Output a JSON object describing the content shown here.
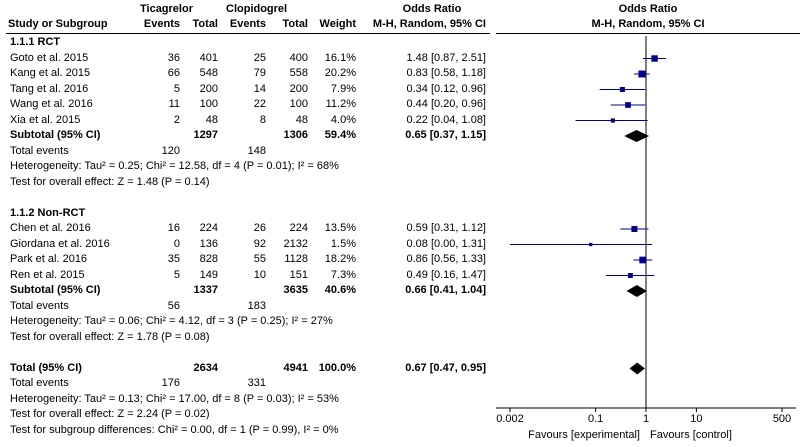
{
  "header": {
    "group1": "Ticagrelor",
    "group2": "Clopidogrel",
    "effect_title": "Odds Ratio",
    "plot_title": "Odds Ratio",
    "col_study": "Study or Subgroup",
    "col_events1": "Events",
    "col_total1": "Total",
    "col_events2": "Events",
    "col_total2": "Total",
    "col_weight": "Weight",
    "col_method": "M-H, Random, 95% CI",
    "plot_method": "M-H, Random, 95% CI"
  },
  "rows": [
    {
      "kind": "subgroup",
      "label": "1.1.1 RCT"
    },
    {
      "kind": "study",
      "label": "Goto et al. 2015",
      "e1": "36",
      "n1": "401",
      "e2": "25",
      "n2": "400",
      "weight": "16.1%",
      "ci": "1.48 [0.87, 2.51]"
    },
    {
      "kind": "study",
      "label": "Kang et al. 2015",
      "e1": "66",
      "n1": "548",
      "e2": "79",
      "n2": "558",
      "weight": "20.2%",
      "ci": "0.83 [0.58, 1.18]"
    },
    {
      "kind": "study",
      "label": "Tang et al. 2016",
      "e1": "5",
      "n1": "200",
      "e2": "14",
      "n2": "200",
      "weight": "7.9%",
      "ci": "0.34 [0.12, 0.96]"
    },
    {
      "kind": "study",
      "label": "Wang et al. 2016",
      "e1": "11",
      "n1": "100",
      "e2": "22",
      "n2": "100",
      "weight": "11.2%",
      "ci": "0.44 [0.20, 0.96]"
    },
    {
      "kind": "study",
      "label": "Xia et al. 2015",
      "e1": "2",
      "n1": "48",
      "e2": "8",
      "n2": "48",
      "weight": "4.0%",
      "ci": "0.22 [0.04, 1.08]"
    },
    {
      "kind": "subtotal",
      "label": "Subtotal (95% CI)",
      "n1": "1297",
      "n2": "1306",
      "weight": "59.4%",
      "ci": "0.65 [0.37, 1.15]"
    },
    {
      "kind": "events",
      "label": "Total events",
      "e1": "120",
      "e2": "148"
    },
    {
      "kind": "text",
      "label": "Heterogeneity: Tau² = 0.25; Chi² = 12.58, df = 4 (P = 0.01); I² = 68%"
    },
    {
      "kind": "text",
      "label": "Test for overall effect: Z = 1.48 (P = 0.14)"
    },
    {
      "kind": "blank"
    },
    {
      "kind": "subgroup",
      "label": "1.1.2 Non-RCT"
    },
    {
      "kind": "study",
      "label": "Chen et al. 2016",
      "e1": "16",
      "n1": "224",
      "e2": "26",
      "n2": "224",
      "weight": "13.5%",
      "ci": "0.59 [0.31, 1.12]"
    },
    {
      "kind": "study",
      "label": "Giordana et al. 2016",
      "e1": "0",
      "n1": "136",
      "e2": "92",
      "n2": "2132",
      "weight": "1.5%",
      "ci": "0.08 [0.00, 1.31]"
    },
    {
      "kind": "study",
      "label": "Park et al. 2016",
      "e1": "35",
      "n1": "828",
      "e2": "55",
      "n2": "1128",
      "weight": "18.2%",
      "ci": "0.86 [0.56, 1.33]"
    },
    {
      "kind": "study",
      "label": "Ren et al. 2015",
      "e1": "5",
      "n1": "149",
      "e2": "10",
      "n2": "151",
      "weight": "7.3%",
      "ci": "0.49 [0.16, 1.47]"
    },
    {
      "kind": "subtotal",
      "label": "Subtotal (95% CI)",
      "n1": "1337",
      "n2": "3635",
      "weight": "40.6%",
      "ci": "0.66 [0.41, 1.04]"
    },
    {
      "kind": "events",
      "label": "Total events",
      "e1": "56",
      "e2": "183"
    },
    {
      "kind": "text",
      "label": "Heterogeneity: Tau² = 0.06; Chi² = 4.12, df = 3 (P = 0.25); I² = 27%"
    },
    {
      "kind": "text",
      "label": "Test for overall effect: Z = 1.78 (P = 0.08)"
    },
    {
      "kind": "blank"
    },
    {
      "kind": "total",
      "label": "Total (95% CI)",
      "n1": "2634",
      "n2": "4941",
      "weight": "100.0%",
      "ci": "0.67 [0.47, 0.95]"
    },
    {
      "kind": "events",
      "label": "Total events",
      "e1": "176",
      "e2": "331"
    },
    {
      "kind": "text",
      "label": "Heterogeneity: Tau² = 0.13; Chi² = 17.00, df = 8 (P = 0.03); I² = 53%"
    },
    {
      "kind": "text",
      "label": "Test for overall effect: Z = 2.24 (P = 0.02)"
    },
    {
      "kind": "text",
      "label": "Test for subgroup differences: Chi² = 0.00, df = 1 (P = 0.99), I² = 0%"
    }
  ],
  "axis": {
    "ticks": [
      "0.002",
      "0.1",
      "1",
      "10",
      "500"
    ],
    "favours_left": "Favours [experimental]",
    "favours_right": "Favours [control]"
  },
  "chart_data": {
    "type": "forest",
    "x_scale": "log",
    "xlim": [
      0.002,
      500
    ],
    "xticks": [
      0.002,
      0.1,
      1,
      10,
      500
    ],
    "reference_line": 1,
    "marker_color": "#00008b",
    "studies": [
      {
        "name": "Goto et al. 2015",
        "or": 1.48,
        "lower": 0.87,
        "upper": 2.51,
        "weight": 16.1
      },
      {
        "name": "Kang et al. 2015",
        "or": 0.83,
        "lower": 0.58,
        "upper": 1.18,
        "weight": 20.2
      },
      {
        "name": "Tang et al. 2016",
        "or": 0.34,
        "lower": 0.12,
        "upper": 0.96,
        "weight": 7.9
      },
      {
        "name": "Wang et al. 2016",
        "or": 0.44,
        "lower": 0.2,
        "upper": 0.96,
        "weight": 11.2
      },
      {
        "name": "Xia et al. 2015",
        "or": 0.22,
        "lower": 0.04,
        "upper": 1.08,
        "weight": 4.0
      },
      {
        "name": "Chen et al. 2016",
        "or": 0.59,
        "lower": 0.31,
        "upper": 1.12,
        "weight": 13.5
      },
      {
        "name": "Giordana et al. 2016",
        "or": 0.08,
        "lower": 0.0,
        "upper": 1.31,
        "weight": 1.5
      },
      {
        "name": "Park et al. 2016",
        "or": 0.86,
        "lower": 0.56,
        "upper": 1.33,
        "weight": 18.2
      },
      {
        "name": "Ren et al. 2015",
        "or": 0.49,
        "lower": 0.16,
        "upper": 1.47,
        "weight": 7.3
      }
    ],
    "pooled": [
      {
        "name": "Subtotal RCT",
        "or": 0.65,
        "lower": 0.37,
        "upper": 1.15
      },
      {
        "name": "Subtotal Non-RCT",
        "or": 0.66,
        "lower": 0.41,
        "upper": 1.04
      },
      {
        "name": "Total",
        "or": 0.67,
        "lower": 0.47,
        "upper": 0.95
      }
    ]
  }
}
